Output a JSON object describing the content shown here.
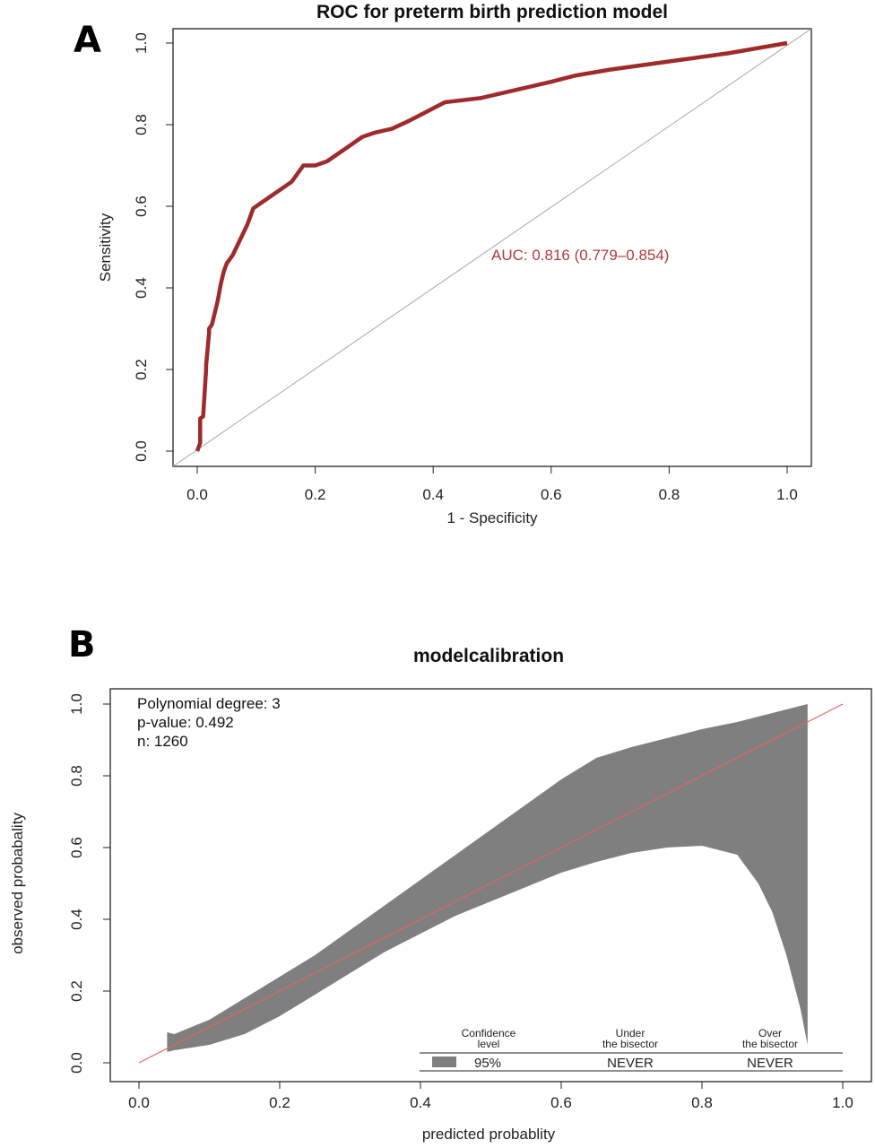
{
  "panels": [
    {
      "letter": "A"
    },
    {
      "letter": "B"
    }
  ],
  "chart_data": [
    {
      "type": "line",
      "title": "ROC for preterm birth prediction model",
      "xlabel": "1 - Specificity",
      "ylabel": "Sensitivity",
      "xlim": [
        0,
        1
      ],
      "ylim": [
        0,
        1
      ],
      "xticks": [
        "0.0",
        "0.2",
        "0.4",
        "0.6",
        "0.8",
        "1.0"
      ],
      "yticks": [
        "0.0",
        "0.2",
        "0.4",
        "0.6",
        "0.8",
        "1.0"
      ],
      "grid": false,
      "annotation": "AUC: 0.816 (0.779–0.854)",
      "curve_color": "#9e2a2b",
      "reference_line_color": "#a8a8a8",
      "series": [
        {
          "x": [
            0.0,
            0.005,
            0.005,
            0.01,
            0.015,
            0.015,
            0.02,
            0.02,
            0.025,
            0.03,
            0.035,
            0.04,
            0.045,
            0.05,
            0.06,
            0.07,
            0.08,
            0.085,
            0.09,
            0.095,
            0.12,
            0.14,
            0.16,
            0.17,
            0.18,
            0.2,
            0.22,
            0.25,
            0.28,
            0.3,
            0.33,
            0.36,
            0.4,
            0.42,
            0.48,
            0.54,
            0.6,
            0.64,
            0.7,
            0.8,
            0.9,
            1.0
          ],
          "y": [
            0.0,
            0.02,
            0.08,
            0.085,
            0.2,
            0.21,
            0.29,
            0.3,
            0.31,
            0.34,
            0.37,
            0.41,
            0.44,
            0.46,
            0.48,
            0.51,
            0.54,
            0.555,
            0.575,
            0.595,
            0.62,
            0.64,
            0.66,
            0.68,
            0.7,
            0.7,
            0.71,
            0.74,
            0.77,
            0.78,
            0.79,
            0.81,
            0.84,
            0.855,
            0.865,
            0.885,
            0.905,
            0.92,
            0.935,
            0.955,
            0.975,
            1.0
          ]
        }
      ]
    },
    {
      "type": "area",
      "title": "modelcalibration",
      "xlabel": "predicted probablity",
      "ylabel": "observed probabality",
      "xlim": [
        0,
        1
      ],
      "ylim": [
        0,
        1
      ],
      "xticks": [
        "0.0",
        "0.2",
        "0.4",
        "0.6",
        "0.8",
        "1.0"
      ],
      "yticks": [
        "0.0",
        "0.2",
        "0.4",
        "0.6",
        "0.8",
        "1.0"
      ],
      "grid": false,
      "info": [
        "Polynomial degree: 3",
        "p-value: 0.492",
        "n: 1260"
      ],
      "band_color": "#7f7f7f",
      "bisector_color": "#e06666",
      "band": {
        "x": [
          0.04,
          0.05,
          0.1,
          0.15,
          0.2,
          0.25,
          0.3,
          0.35,
          0.4,
          0.45,
          0.5,
          0.55,
          0.6,
          0.65,
          0.7,
          0.75,
          0.8,
          0.85,
          0.88,
          0.9,
          0.92,
          0.94,
          0.95
        ],
        "lower": [
          0.03,
          0.035,
          0.05,
          0.08,
          0.13,
          0.19,
          0.25,
          0.31,
          0.36,
          0.41,
          0.45,
          0.49,
          0.53,
          0.56,
          0.585,
          0.6,
          0.605,
          0.58,
          0.5,
          0.42,
          0.3,
          0.15,
          0.05
        ],
        "upper": [
          0.085,
          0.08,
          0.12,
          0.18,
          0.24,
          0.3,
          0.37,
          0.44,
          0.51,
          0.58,
          0.65,
          0.72,
          0.79,
          0.85,
          0.88,
          0.905,
          0.93,
          0.95,
          0.965,
          0.975,
          0.985,
          0.995,
          1.0
        ]
      },
      "bisector": {
        "x": [
          0,
          1
        ],
        "y": [
          0,
          1
        ]
      },
      "legend": {
        "placement": "bottom-right",
        "headers": [
          [
            "Confidence",
            "level"
          ],
          [
            "Under",
            "the bisector"
          ],
          [
            "Over",
            "the bisector"
          ]
        ],
        "row": [
          "95%",
          "NEVER",
          "NEVER"
        ]
      }
    }
  ]
}
